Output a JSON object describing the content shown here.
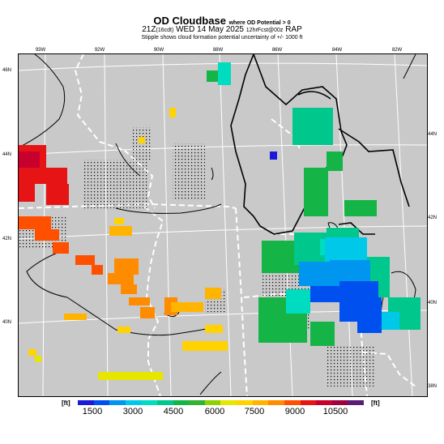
{
  "header": {
    "title": "OD Cloudbase",
    "title_note": "where OD Potential > 0",
    "valid_prefix": "21Z",
    "valid_local": "(16cdt)",
    "valid_date": "WED 14 May 2025",
    "valid_run": "12hrFcst@00z",
    "valid_model": "RAP",
    "stipple_note": "Stipple shows cloud formation potential uncertainty of +/- 1000 ft"
  },
  "axes": {
    "lon_labels": [
      "93W",
      "92W",
      "90W",
      "88W",
      "86W",
      "84W",
      "82W"
    ],
    "lat_labels_left": [
      "46N",
      "44N",
      "42N",
      "40N"
    ],
    "lat_labels_right": [
      "44N",
      "42N",
      "40N",
      "38N"
    ]
  },
  "legend": {
    "unit_left": "[ft]",
    "unit_right": "[ft]",
    "tick_labels": [
      "1500",
      "3000",
      "4500",
      "6000",
      "7500",
      "9000",
      "10500"
    ],
    "colors": [
      "#1a1ad8",
      "#0050f0",
      "#0096f0",
      "#00c8e8",
      "#00dcc0",
      "#00c88c",
      "#14b446",
      "#32b432",
      "#8cd200",
      "#e6e600",
      "#ffd200",
      "#ffb400",
      "#ff8c00",
      "#ff5000",
      "#e61414",
      "#c8002d",
      "#a0003c",
      "#5a1e78"
    ]
  }
}
